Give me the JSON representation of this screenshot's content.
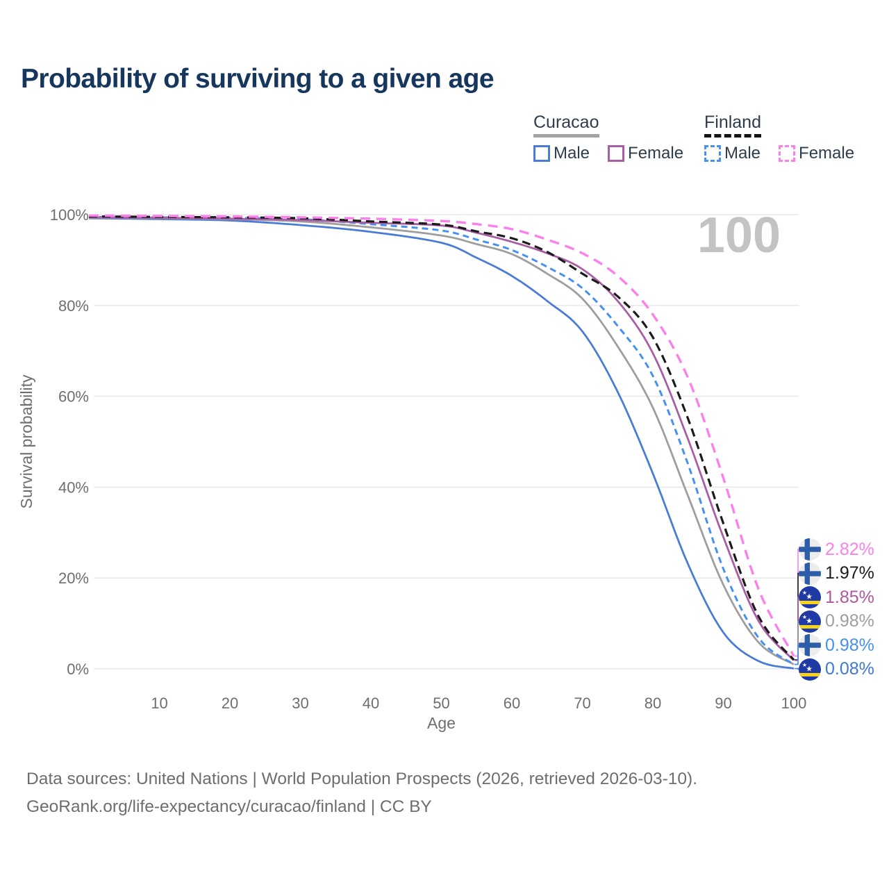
{
  "title": "Probability of surviving to a given age",
  "watermark_age": "100",
  "legend": {
    "curacao": {
      "title": "Curacao",
      "male": "Male",
      "female": "Female"
    },
    "finland": {
      "title": "Finland",
      "male": "Male",
      "female": "Female"
    }
  },
  "footer": {
    "line1": "Data sources: United Nations | World Population Prospects (2026, retrieved 2026-03-10).",
    "line2": "GeoRank.org/life-expectancy/curacao/finland | CC BY"
  },
  "colors": {
    "title_text": "#17365d",
    "legend_text": "#2e3d4e",
    "axis_text": "#6e6e6e",
    "gridline": "#e9e9e9",
    "watermark": "#c3c3c3",
    "curacao_male": "#4a7cd6",
    "curacao_female": "#a95da5",
    "curacao_total": "#9e9e9e",
    "finland_male": "#4690f2",
    "finland_female": "#fb80e9",
    "finland_total": "#1b1b1b"
  },
  "chart_data": {
    "type": "line",
    "title": "Probability of surviving to a given age",
    "xlabel": "Age",
    "ylabel": "Survival probability",
    "xlim": [
      0,
      100
    ],
    "ylim": [
      0,
      100
    ],
    "grid": "horizontal",
    "x_ticks": [
      10,
      20,
      30,
      40,
      50,
      60,
      70,
      80,
      90,
      100
    ],
    "y_ticks": [
      {
        "value": 100,
        "label": "100%"
      },
      {
        "value": 80,
        "label": "80%"
      },
      {
        "value": 60,
        "label": "60%"
      },
      {
        "value": 40,
        "label": "40%"
      },
      {
        "value": 20,
        "label": "20%"
      },
      {
        "value": 0,
        "label": "0%"
      }
    ],
    "hover_age_indicator": "100",
    "ages": [
      0,
      10,
      20,
      30,
      40,
      50,
      55,
      60,
      65,
      70,
      75,
      80,
      85,
      90,
      95,
      100
    ],
    "series": [
      {
        "name": "Curacao Male",
        "country": "Curacao",
        "sex": "Male",
        "color": "#4a7cd6",
        "dash": null,
        "width": 2.8,
        "flag": "curacao-flag-icon",
        "values": [
          99.2,
          99.0,
          98.7,
          97.7,
          96.2,
          93.8,
          90.5,
          86.5,
          81.0,
          74.3,
          61.0,
          43.0,
          23.0,
          8.0,
          1.7,
          0.08
        ],
        "end_label": "0.08%",
        "end_label_color": "#3e79d6",
        "survival_at_100_pct": 0.08
      },
      {
        "name": "Curacao (all)",
        "country": "Curacao",
        "sex": "All",
        "color": "#9e9e9e",
        "dash": null,
        "width": 2.8,
        "flag": "curacao-flag-icon",
        "values": [
          99.3,
          99.2,
          99.0,
          98.5,
          97.2,
          95.4,
          93.5,
          91.3,
          87.0,
          81.5,
          71.0,
          57.5,
          38.0,
          18.5,
          5.8,
          0.98
        ],
        "end_label": "0.98%",
        "end_label_color": "#9e9e9e",
        "survival_at_100_pct": 0.98
      },
      {
        "name": "Finland Male",
        "country": "Finland",
        "sex": "Male",
        "color": "#4690f2",
        "dash": "9 6",
        "width": 3,
        "flag": "finland-flag-icon",
        "values": [
          99.5,
          99.4,
          99.3,
          99.0,
          97.9,
          96.5,
          94.5,
          92.2,
          88.5,
          83.8,
          75.5,
          64.5,
          45.0,
          22.0,
          6.8,
          0.98
        ],
        "end_label": "0.98%",
        "end_label_color": "#4690f2",
        "survival_at_100_pct": 0.98
      },
      {
        "name": "Curacao Female",
        "country": "Curacao",
        "sex": "Female",
        "color": "#a95da5",
        "dash": null,
        "width": 2.8,
        "flag": "curacao-flag-icon",
        "values": [
          99.4,
          99.3,
          99.1,
          98.8,
          98.2,
          97.6,
          96.0,
          94.0,
          91.5,
          88.0,
          81.0,
          69.5,
          50.5,
          29.0,
          10.5,
          1.85
        ],
        "end_label": "1.85%",
        "end_label_color": "#af58a0",
        "survival_at_100_pct": 1.85
      },
      {
        "name": "Finland (all)",
        "country": "Finland",
        "sex": "All",
        "color": "#1b1b1b",
        "dash": "12 7",
        "width": 3.2,
        "flag": "finland-flag-icon",
        "values": [
          99.6,
          99.5,
          99.4,
          99.2,
          98.5,
          97.8,
          96.3,
          94.8,
          91.8,
          87.0,
          82.0,
          73.0,
          55.0,
          32.0,
          11.5,
          1.97
        ],
        "end_label": "1.97%",
        "end_label_color": "#1b1b1b",
        "survival_at_100_pct": 1.97
      },
      {
        "name": "Finland Female",
        "country": "Finland",
        "sex": "Female",
        "color": "#fb80e9",
        "dash": "14 9",
        "width": 3.4,
        "flag": "finland-flag-icon",
        "values": [
          99.8,
          99.7,
          99.6,
          99.4,
          99.1,
          98.6,
          97.9,
          96.8,
          94.5,
          91.5,
          86.5,
          78.0,
          64.0,
          42.0,
          17.5,
          2.82
        ],
        "end_label": "2.82%",
        "end_label_color": "#fb80e9",
        "survival_at_100_pct": 2.82
      }
    ]
  }
}
